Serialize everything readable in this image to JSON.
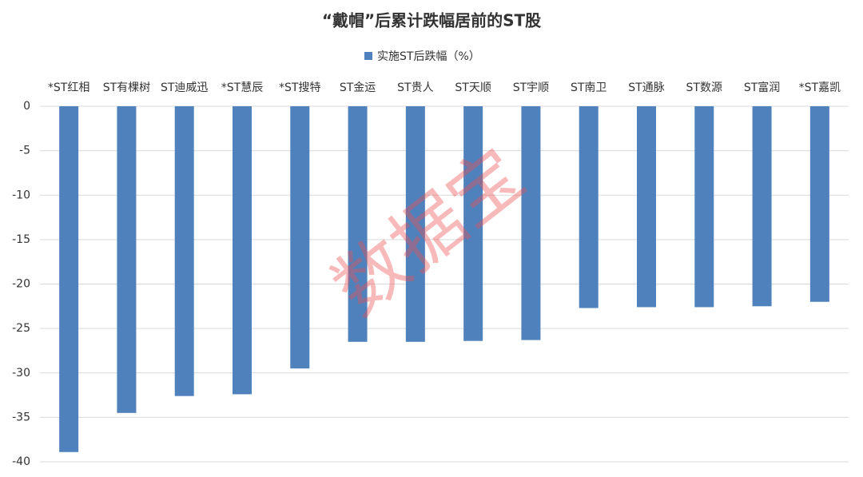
{
  "chart_data": {
    "type": "bar",
    "title": "“戴帽”后累计跌幅居前的ST股",
    "categories": [
      "*ST红相",
      "ST有棵树",
      "ST迪威迅",
      "*ST慧辰",
      "*ST搜特",
      "ST金运",
      "ST贵人",
      "ST天顺",
      "ST宇顺",
      "ST南卫",
      "ST通脉",
      "ST数源",
      "ST富润",
      "*ST嘉凯"
    ],
    "series": [
      {
        "name": "实施ST后跌幅（%）",
        "color": "#4f81bd",
        "values": [
          -38.9,
          -34.5,
          -32.6,
          -32.4,
          -29.5,
          -26.5,
          -26.5,
          -26.4,
          -26.3,
          -22.7,
          -22.6,
          -22.6,
          -22.5,
          -22.0
        ]
      }
    ],
    "ylim": [
      -40,
      0
    ],
    "yticks": [
      0,
      -5,
      -10,
      -15,
      -20,
      -25,
      -30,
      -35,
      -40
    ],
    "grid": true,
    "watermark": "数据宝"
  }
}
